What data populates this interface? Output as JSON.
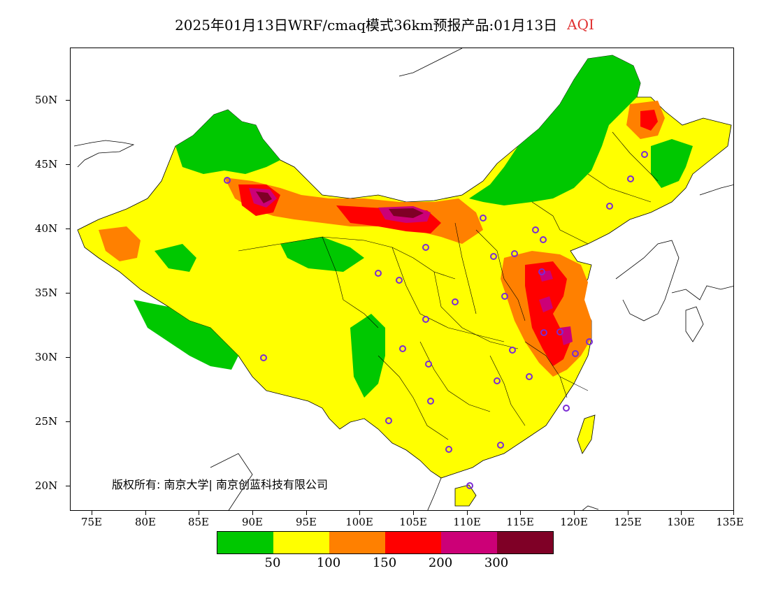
{
  "title": {
    "main": "2025年01月13日WRF/cmaq模式36km预报产品:01月13日",
    "variable": "AQI"
  },
  "axes": {
    "lat_labels": [
      "50N",
      "45N",
      "40N",
      "35N",
      "30N",
      "25N",
      "20N"
    ],
    "lon_labels": [
      "75E",
      "80E",
      "85E",
      "90E",
      "95E",
      "100E",
      "105E",
      "110E",
      "115E",
      "120E",
      "125E",
      "130E",
      "135E"
    ]
  },
  "copyright": "版权所有: 南京大学| 南京创蓝科技有限公司",
  "legend": {
    "colors": [
      "#00c800",
      "#ffff00",
      "#ff8000",
      "#ff0000",
      "#cc0077",
      "#7f0026"
    ],
    "labels": [
      "50",
      "100",
      "150",
      "200",
      "300"
    ]
  },
  "colors": {
    "good": "#00c800",
    "moderate": "#ffff00",
    "sensitive": "#ff8000",
    "unhealthy": "#ff0000",
    "very_unhealthy": "#cc0077",
    "hazardous": "#7f0026",
    "station_marker": "#7a2bd4"
  }
}
